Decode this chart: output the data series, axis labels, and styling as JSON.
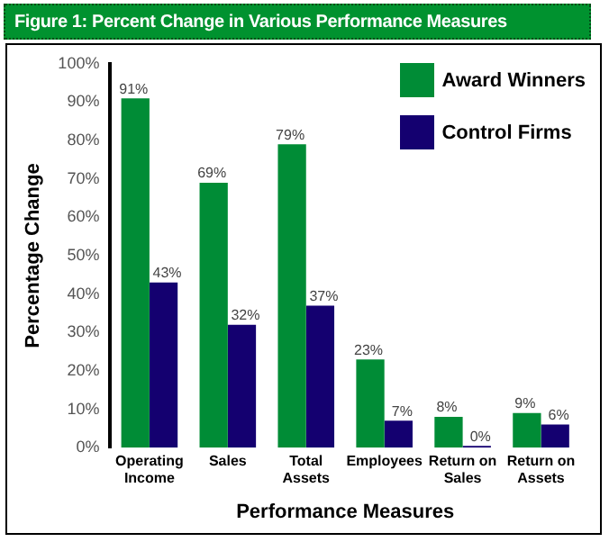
{
  "chart_data": {
    "type": "bar",
    "title": "Figure 1: Percent Change in Various Performance Measures",
    "xlabel": "Performance Measures",
    "ylabel": "Percentage Change",
    "categories": [
      "Operating Income",
      "Sales",
      "Total Assets",
      "Employees",
      "Return on Sales",
      "Return on Assets"
    ],
    "series": [
      {
        "name": "Award Winners",
        "color": "#008c36",
        "values": [
          91,
          69,
          79,
          23,
          8,
          9
        ],
        "value_labels": [
          "91%",
          "69%",
          "79%",
          "23%",
          "8%",
          "9%"
        ]
      },
      {
        "name": "Control Firms",
        "color": "#140070",
        "values": [
          43,
          32,
          37,
          7,
          0,
          6
        ],
        "value_labels": [
          "43%",
          "32%",
          "37%",
          "7%",
          "0%",
          "6%"
        ]
      }
    ],
    "ylim": [
      0,
      100
    ],
    "yticks": [
      {
        "value": 0,
        "label": "0%"
      },
      {
        "value": 10,
        "label": "10%"
      },
      {
        "value": 20,
        "label": "20%"
      },
      {
        "value": 30,
        "label": "30%"
      },
      {
        "value": 40,
        "label": "40%"
      },
      {
        "value": 50,
        "label": "50%"
      },
      {
        "value": 60,
        "label": "60%"
      },
      {
        "value": 70,
        "label": "70%"
      },
      {
        "value": 80,
        "label": "80%"
      },
      {
        "value": 90,
        "label": "90%"
      },
      {
        "value": 100,
        "label": "100%"
      }
    ],
    "grid": false,
    "legend": "top right"
  }
}
